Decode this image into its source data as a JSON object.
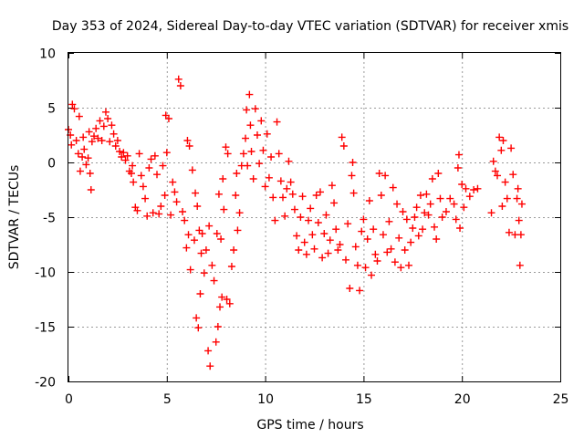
{
  "chart_data": {
    "type": "scatter",
    "title": "Day 353 of 2024, Sidereal Day-to-day VTEC variation (SDTVAR) for receiver xmis",
    "xlabel": "GPS time / hours",
    "ylabel": "SDTVAR / TECUs",
    "xlim": [
      0,
      25
    ],
    "ylim": [
      -20,
      10
    ],
    "xticks": [
      "0",
      "5",
      "10",
      "15",
      "20",
      "25"
    ],
    "yticks": [
      "10",
      "5",
      "0",
      "-5",
      "-10",
      "-15",
      "-20"
    ],
    "grid": true,
    "marker": "plus",
    "color": "#ff0000",
    "series": [
      {
        "name": "SDTVAR",
        "points": [
          [
            0.0,
            3.0
          ],
          [
            0.1,
            2.5
          ],
          [
            0.15,
            1.6
          ],
          [
            0.2,
            5.3
          ],
          [
            0.3,
            4.9
          ],
          [
            0.4,
            2.0
          ],
          [
            0.5,
            0.8
          ],
          [
            0.55,
            4.2
          ],
          [
            0.6,
            -0.8
          ],
          [
            0.7,
            0.5
          ],
          [
            0.75,
            2.3
          ],
          [
            0.8,
            1.2
          ],
          [
            0.9,
            -0.2
          ],
          [
            1.0,
            0.4
          ],
          [
            1.05,
            2.8
          ],
          [
            1.1,
            -1.0
          ],
          [
            1.15,
            -2.5
          ],
          [
            1.2,
            1.9
          ],
          [
            1.3,
            2.4
          ],
          [
            1.4,
            3.1
          ],
          [
            1.5,
            2.2
          ],
          [
            1.6,
            3.8
          ],
          [
            1.7,
            2.0
          ],
          [
            1.8,
            3.3
          ],
          [
            1.9,
            4.6
          ],
          [
            2.0,
            4.0
          ],
          [
            2.1,
            1.9
          ],
          [
            2.2,
            3.4
          ],
          [
            2.3,
            2.6
          ],
          [
            2.4,
            1.5
          ],
          [
            2.5,
            2.0
          ],
          [
            2.6,
            1.0
          ],
          [
            2.7,
            0.5
          ],
          [
            2.8,
            0.9
          ],
          [
            2.9,
            0.2
          ],
          [
            3.0,
            0.6
          ],
          [
            3.1,
            -0.8
          ],
          [
            3.2,
            -1.0
          ],
          [
            3.25,
            -0.3
          ],
          [
            3.3,
            -1.8
          ],
          [
            3.4,
            -4.1
          ],
          [
            3.5,
            -4.4
          ],
          [
            3.6,
            0.8
          ],
          [
            3.7,
            -1.2
          ],
          [
            3.8,
            -2.2
          ],
          [
            3.9,
            -3.3
          ],
          [
            4.0,
            -4.9
          ],
          [
            4.1,
            -0.5
          ],
          [
            4.2,
            0.3
          ],
          [
            4.3,
            -4.6
          ],
          [
            4.4,
            0.6
          ],
          [
            4.5,
            -1.1
          ],
          [
            4.6,
            -4.7
          ],
          [
            4.7,
            -4.0
          ],
          [
            4.8,
            -0.3
          ],
          [
            4.9,
            -3.0
          ],
          [
            4.95,
            4.3
          ],
          [
            5.0,
            0.9
          ],
          [
            5.1,
            4.0
          ],
          [
            5.2,
            -4.8
          ],
          [
            5.3,
            -1.8
          ],
          [
            5.4,
            -2.7
          ],
          [
            5.5,
            -3.6
          ],
          [
            5.6,
            7.6
          ],
          [
            5.7,
            7.0
          ],
          [
            5.8,
            -4.5
          ],
          [
            5.9,
            -5.3
          ],
          [
            6.0,
            -7.8
          ],
          [
            6.05,
            2.0
          ],
          [
            6.1,
            -6.6
          ],
          [
            6.15,
            1.5
          ],
          [
            6.2,
            -9.8
          ],
          [
            6.3,
            -0.7
          ],
          [
            6.4,
            -7.1
          ],
          [
            6.45,
            -2.8
          ],
          [
            6.5,
            -14.2
          ],
          [
            6.55,
            -4.0
          ],
          [
            6.6,
            -15.1
          ],
          [
            6.65,
            -6.2
          ],
          [
            6.7,
            -12.0
          ],
          [
            6.75,
            -8.3
          ],
          [
            6.8,
            -6.5
          ],
          [
            6.9,
            -10.1
          ],
          [
            7.0,
            -8.0
          ],
          [
            7.1,
            -17.2
          ],
          [
            7.15,
            -5.8
          ],
          [
            7.2,
            -18.6
          ],
          [
            7.3,
            -9.4
          ],
          [
            7.4,
            -10.8
          ],
          [
            7.5,
            -16.4
          ],
          [
            7.55,
            -6.5
          ],
          [
            7.6,
            -15.0
          ],
          [
            7.65,
            -2.9
          ],
          [
            7.7,
            -13.2
          ],
          [
            7.75,
            -7.0
          ],
          [
            7.8,
            -12.3
          ],
          [
            7.85,
            -1.5
          ],
          [
            7.9,
            -4.3
          ],
          [
            8.0,
            1.4
          ],
          [
            8.05,
            -12.5
          ],
          [
            8.1,
            0.8
          ],
          [
            8.2,
            -12.9
          ],
          [
            8.3,
            -9.5
          ],
          [
            8.4,
            -8.0
          ],
          [
            8.5,
            -3.0
          ],
          [
            8.55,
            -1.0
          ],
          [
            8.6,
            -6.2
          ],
          [
            8.7,
            -4.6
          ],
          [
            8.8,
            -0.3
          ],
          [
            8.9,
            0.8
          ],
          [
            9.0,
            2.2
          ],
          [
            9.05,
            4.8
          ],
          [
            9.1,
            -0.3
          ],
          [
            9.2,
            6.2
          ],
          [
            9.25,
            3.4
          ],
          [
            9.3,
            1.0
          ],
          [
            9.4,
            -1.5
          ],
          [
            9.5,
            4.9
          ],
          [
            9.6,
            2.5
          ],
          [
            9.7,
            -0.1
          ],
          [
            9.8,
            3.8
          ],
          [
            9.9,
            1.1
          ],
          [
            10.0,
            -2.2
          ],
          [
            10.1,
            2.6
          ],
          [
            10.2,
            -1.4
          ],
          [
            10.3,
            0.5
          ],
          [
            10.4,
            -3.2
          ],
          [
            10.5,
            -5.3
          ],
          [
            10.6,
            3.7
          ],
          [
            10.7,
            0.8
          ],
          [
            10.8,
            -1.7
          ],
          [
            10.9,
            -3.2
          ],
          [
            11.0,
            -4.9
          ],
          [
            11.1,
            -2.4
          ],
          [
            11.2,
            0.1
          ],
          [
            11.3,
            -1.8
          ],
          [
            11.4,
            -2.9
          ],
          [
            11.5,
            -4.3
          ],
          [
            11.6,
            -6.7
          ],
          [
            11.7,
            -8.0
          ],
          [
            11.8,
            -5.0
          ],
          [
            11.9,
            -3.1
          ],
          [
            12.0,
            -7.3
          ],
          [
            12.1,
            -8.4
          ],
          [
            12.2,
            -5.3
          ],
          [
            12.3,
            -4.2
          ],
          [
            12.4,
            -6.6
          ],
          [
            12.5,
            -7.9
          ],
          [
            12.6,
            -3.0
          ],
          [
            12.7,
            -5.5
          ],
          [
            12.8,
            -2.7
          ],
          [
            12.9,
            -8.7
          ],
          [
            13.0,
            -6.5
          ],
          [
            13.1,
            -4.8
          ],
          [
            13.2,
            -8.3
          ],
          [
            13.3,
            -7.1
          ],
          [
            13.4,
            -2.1
          ],
          [
            13.5,
            -3.7
          ],
          [
            13.6,
            -6.1
          ],
          [
            13.7,
            -8.0
          ],
          [
            13.8,
            -7.5
          ],
          [
            13.9,
            2.3
          ],
          [
            14.0,
            1.5
          ],
          [
            14.1,
            -8.9
          ],
          [
            14.2,
            -5.6
          ],
          [
            14.3,
            -11.5
          ],
          [
            14.4,
            -1.2
          ],
          [
            14.45,
            0.0
          ],
          [
            14.5,
            -2.8
          ],
          [
            14.6,
            -7.7
          ],
          [
            14.7,
            -9.4
          ],
          [
            14.8,
            -11.7
          ],
          [
            14.9,
            -6.3
          ],
          [
            15.0,
            -5.2
          ],
          [
            15.1,
            -9.6
          ],
          [
            15.2,
            -7.0
          ],
          [
            15.3,
            -3.5
          ],
          [
            15.4,
            -10.3
          ],
          [
            15.5,
            -6.1
          ],
          [
            15.6,
            -8.4
          ],
          [
            15.7,
            -9.0
          ],
          [
            15.8,
            -1.0
          ],
          [
            15.9,
            -3.0
          ],
          [
            16.0,
            -6.6
          ],
          [
            16.1,
            -1.2
          ],
          [
            16.2,
            -8.2
          ],
          [
            16.3,
            -5.4
          ],
          [
            16.4,
            -7.9
          ],
          [
            16.5,
            -2.3
          ],
          [
            16.6,
            -9.1
          ],
          [
            16.7,
            -3.8
          ],
          [
            16.8,
            -6.9
          ],
          [
            16.9,
            -9.6
          ],
          [
            17.0,
            -4.5
          ],
          [
            17.1,
            -8.0
          ],
          [
            17.2,
            -5.2
          ],
          [
            17.3,
            -9.4
          ],
          [
            17.4,
            -7.3
          ],
          [
            17.5,
            -6.0
          ],
          [
            17.6,
            -5.0
          ],
          [
            17.7,
            -4.1
          ],
          [
            17.8,
            -6.7
          ],
          [
            17.9,
            -3.0
          ],
          [
            18.0,
            -6.1
          ],
          [
            18.1,
            -4.6
          ],
          [
            18.2,
            -2.9
          ],
          [
            18.3,
            -4.8
          ],
          [
            18.4,
            -3.8
          ],
          [
            18.5,
            -1.5
          ],
          [
            18.6,
            -5.9
          ],
          [
            18.7,
            -7.0
          ],
          [
            18.8,
            -1.0
          ],
          [
            18.9,
            -3.3
          ],
          [
            19.0,
            -5.0
          ],
          [
            19.2,
            -4.5
          ],
          [
            19.4,
            -3.3
          ],
          [
            19.6,
            -3.8
          ],
          [
            19.7,
            -5.2
          ],
          [
            19.8,
            -0.5
          ],
          [
            19.85,
            0.7
          ],
          [
            19.9,
            -6.0
          ],
          [
            20.0,
            -2.0
          ],
          [
            20.1,
            -4.1
          ],
          [
            20.2,
            -2.4
          ],
          [
            20.4,
            -3.1
          ],
          [
            20.6,
            -2.5
          ],
          [
            20.8,
            -2.4
          ],
          [
            21.5,
            -4.6
          ],
          [
            21.6,
            0.1
          ],
          [
            21.7,
            -0.8
          ],
          [
            21.8,
            -1.2
          ],
          [
            21.9,
            2.3
          ],
          [
            22.0,
            1.1
          ],
          [
            22.05,
            -4.0
          ],
          [
            22.1,
            2.0
          ],
          [
            22.2,
            -1.8
          ],
          [
            22.3,
            -3.3
          ],
          [
            22.4,
            -6.4
          ],
          [
            22.5,
            1.3
          ],
          [
            22.6,
            -1.1
          ],
          [
            22.7,
            -6.6
          ],
          [
            22.8,
            -3.3
          ],
          [
            22.85,
            -2.4
          ],
          [
            22.9,
            -5.3
          ],
          [
            22.95,
            -9.4
          ],
          [
            23.0,
            -6.6
          ],
          [
            23.05,
            -3.8
          ]
        ]
      }
    ]
  }
}
